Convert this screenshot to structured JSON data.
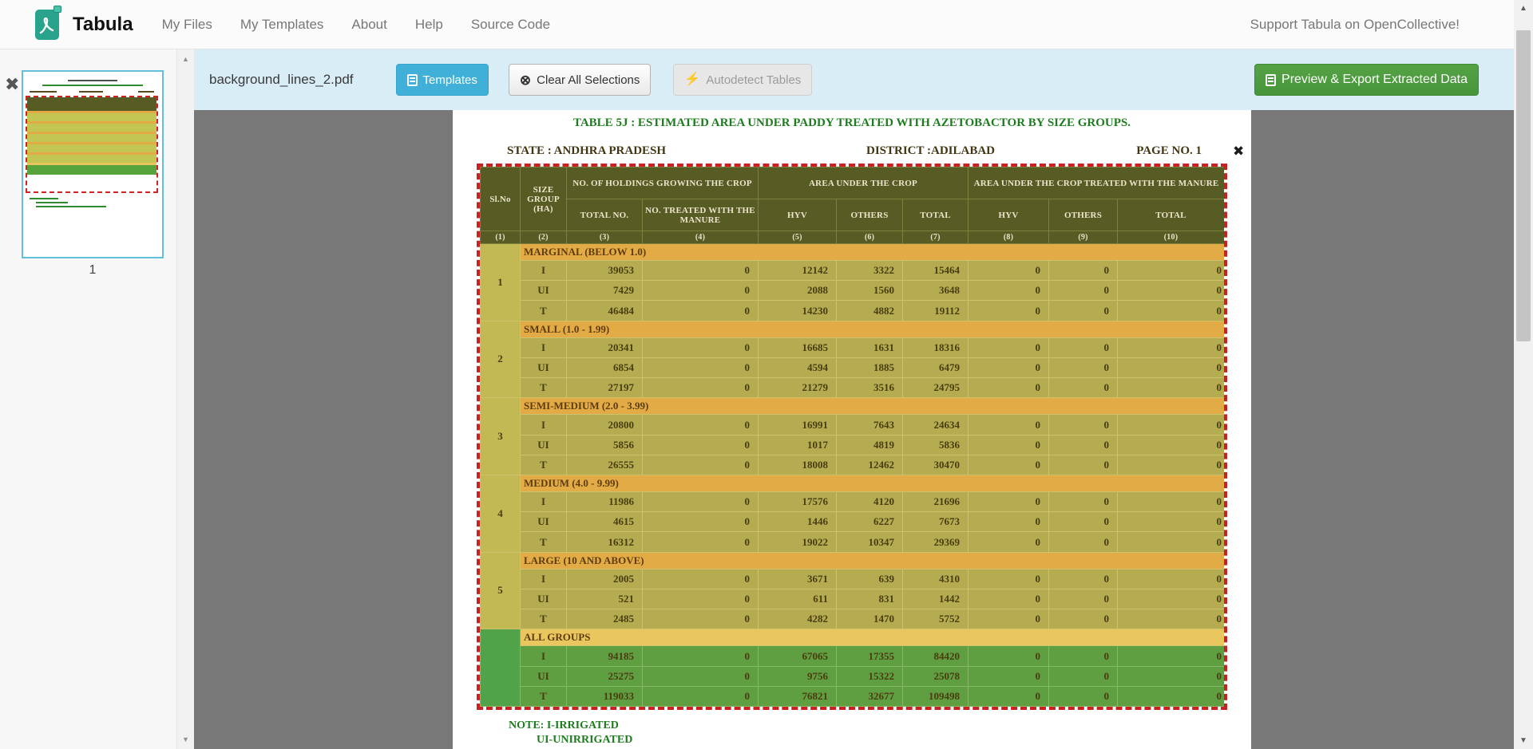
{
  "navbar": {
    "brand": "Tabula",
    "items": [
      {
        "label": "My Files"
      },
      {
        "label": "My Templates"
      },
      {
        "label": "About"
      },
      {
        "label": "Help"
      },
      {
        "label": "Source Code"
      }
    ],
    "support": "Support Tabula on OpenCollective!"
  },
  "toolbar": {
    "filename": "background_lines_2.pdf",
    "templates": "Templates",
    "clear": "Clear All Selections",
    "autodetect": "Autodetect Tables",
    "export": "Preview & Export Extracted Data"
  },
  "sidebar": {
    "page_label": "1",
    "close_glyph": "✖"
  },
  "pdf": {
    "title": "TABLE 5J : ESTIMATED AREA UNDER PADDY  TREATED WITH AZETOBACTOR BY SIZE GROUPS.",
    "state": "STATE : ANDHRA PRADESH",
    "district": "DISTRICT :ADILABAD",
    "page_no": "PAGE NO. 1",
    "selection_close_glyph": "✖",
    "notes": [
      "NOTE: I-IRRIGATED",
      "UI-UNIRRIGATED"
    ]
  },
  "pdf_table": {
    "header": {
      "sl_no": "Sl.No",
      "size_group": "SIZE GROUP (HA)",
      "holdings": "NO. OF HOLDINGS GROWING THE CROP",
      "area": "AREA UNDER THE CROP",
      "area_treated": "AREA UNDER THE CROP TREATED WITH THE MANURE",
      "total_no": "TOTAL NO.",
      "treated": "NO. TREATED WITH THE MANURE",
      "hyv": "HYV",
      "others": "OTHERS",
      "total": "TOTAL",
      "col_numbers": [
        "(1)",
        "(2)",
        "(3)",
        "(4)",
        "(5)",
        "(6)",
        "(7)",
        "(8)",
        "(9)",
        "(10)"
      ]
    },
    "groups": [
      {
        "sl_no": "1",
        "label": "MARGINAL (BELOW 1.0)",
        "green": false,
        "rows": [
          {
            "type": "I",
            "values": [
              39053,
              0,
              12142,
              3322,
              15464,
              0,
              0,
              0
            ]
          },
          {
            "type": "UI",
            "values": [
              7429,
              0,
              2088,
              1560,
              3648,
              0,
              0,
              0
            ]
          },
          {
            "type": "T",
            "values": [
              46484,
              0,
              14230,
              4882,
              19112,
              0,
              0,
              0
            ]
          }
        ]
      },
      {
        "sl_no": "2",
        "label": "SMALL (1.0 - 1.99)",
        "green": false,
        "rows": [
          {
            "type": "I",
            "values": [
              20341,
              0,
              16685,
              1631,
              18316,
              0,
              0,
              0
            ]
          },
          {
            "type": "UI",
            "values": [
              6854,
              0,
              4594,
              1885,
              6479,
              0,
              0,
              0
            ]
          },
          {
            "type": "T",
            "values": [
              27197,
              0,
              21279,
              3516,
              24795,
              0,
              0,
              0
            ]
          }
        ]
      },
      {
        "sl_no": "3",
        "label": "SEMI-MEDIUM (2.0 - 3.99)",
        "green": false,
        "rows": [
          {
            "type": "I",
            "values": [
              20800,
              0,
              16991,
              7643,
              24634,
              0,
              0,
              0
            ]
          },
          {
            "type": "UI",
            "values": [
              5856,
              0,
              1017,
              4819,
              5836,
              0,
              0,
              0
            ]
          },
          {
            "type": "T",
            "values": [
              26555,
              0,
              18008,
              12462,
              30470,
              0,
              0,
              0
            ]
          }
        ]
      },
      {
        "sl_no": "4",
        "label": "MEDIUM (4.0 - 9.99)",
        "green": false,
        "rows": [
          {
            "type": "I",
            "values": [
              11986,
              0,
              17576,
              4120,
              21696,
              0,
              0,
              0
            ]
          },
          {
            "type": "UI",
            "values": [
              4615,
              0,
              1446,
              6227,
              7673,
              0,
              0,
              0
            ]
          },
          {
            "type": "T",
            "values": [
              16312,
              0,
              19022,
              10347,
              29369,
              0,
              0,
              0
            ]
          }
        ]
      },
      {
        "sl_no": "5",
        "label": "LARGE (10 AND ABOVE)",
        "green": false,
        "rows": [
          {
            "type": "I",
            "values": [
              2005,
              0,
              3671,
              639,
              4310,
              0,
              0,
              0
            ]
          },
          {
            "type": "UI",
            "values": [
              521,
              0,
              611,
              831,
              1442,
              0,
              0,
              0
            ]
          },
          {
            "type": "T",
            "values": [
              2485,
              0,
              4282,
              1470,
              5752,
              0,
              0,
              0
            ]
          }
        ]
      },
      {
        "sl_no": "",
        "label": "ALL GROUPS",
        "green": true,
        "rows": [
          {
            "type": "I",
            "values": [
              94185,
              0,
              67065,
              17355,
              84420,
              0,
              0,
              0
            ]
          },
          {
            "type": "UI",
            "values": [
              25275,
              0,
              9756,
              15322,
              25078,
              0,
              0,
              0
            ]
          },
          {
            "type": "T",
            "values": [
              119033,
              0,
              76821,
              32677,
              109498,
              0,
              0,
              0
            ]
          }
        ]
      }
    ]
  },
  "colors": {
    "accent_blue": "#41b0d8",
    "accent_green": "#47953a",
    "toolbar_bg": "#d9edf7",
    "viewer_bg": "#787878",
    "table_header": "#575b24",
    "table_row": "#b5ac52",
    "group_band": "#e2ab45",
    "all_groups_row": "#5f9e41",
    "selection_red": "#c92121",
    "doc_green": "#1d7c1d"
  }
}
